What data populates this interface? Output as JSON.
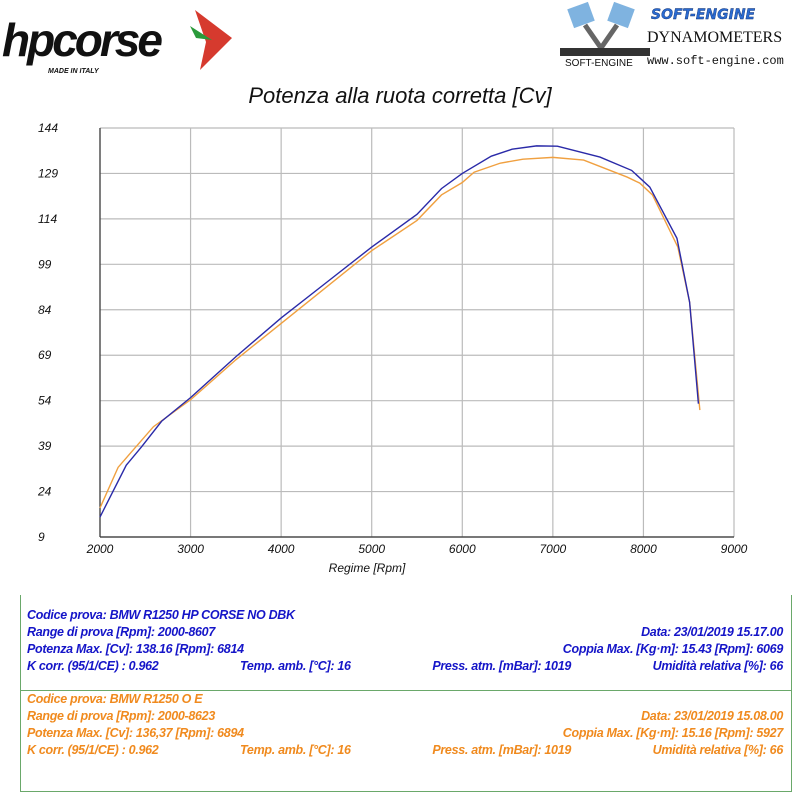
{
  "logos": {
    "hpcorse": {
      "text": "hpcorse",
      "tagline": "MADE IN ITALY"
    },
    "softengine": {
      "brand": "SOFT-ENGINE",
      "product": "DYNAMOMETERS",
      "url": "www.soft-engine.com",
      "mark": "SOFT-ENGINE"
    }
  },
  "chart_data": {
    "type": "line",
    "title": "Potenza alla ruota corretta [Cv]",
    "xlabel": "Regime [Rpm]",
    "ylabel": "",
    "xlim": [
      2000,
      9000
    ],
    "ylim": [
      9,
      144
    ],
    "xticks": [
      2000,
      3000,
      4000,
      5000,
      6000,
      7000,
      8000,
      9000
    ],
    "yticks": [
      9,
      24,
      39,
      54,
      69,
      84,
      99,
      114,
      129,
      144
    ],
    "grid": true,
    "series": [
      {
        "color": "#2a2aa8",
        "points": [
          [
            2000,
            15.6
          ],
          [
            2290,
            32.7
          ],
          [
            2460,
            38.8
          ],
          [
            2680,
            47.2
          ],
          [
            3000,
            55
          ],
          [
            3500,
            68.5
          ],
          [
            4000,
            81.3
          ],
          [
            4500,
            93
          ],
          [
            5000,
            104.7
          ],
          [
            5500,
            115.5
          ],
          [
            5770,
            124
          ],
          [
            6000,
            129
          ],
          [
            6320,
            134.7
          ],
          [
            6550,
            137
          ],
          [
            6820,
            138.1
          ],
          [
            7050,
            138
          ],
          [
            7520,
            134.4
          ],
          [
            7870,
            130
          ],
          [
            8070,
            124.5
          ],
          [
            8370,
            107.6
          ],
          [
            8510,
            86.5
          ],
          [
            8607,
            53
          ]
        ]
      },
      {
        "color": "#f0a040",
        "points": [
          [
            2000,
            18.6
          ],
          [
            2200,
            32
          ],
          [
            2590,
            45.4
          ],
          [
            3000,
            54.3
          ],
          [
            3500,
            67.5
          ],
          [
            4000,
            79.5
          ],
          [
            4500,
            91.5
          ],
          [
            5000,
            103.5
          ],
          [
            5500,
            113.5
          ],
          [
            5770,
            121.9
          ],
          [
            6000,
            126
          ],
          [
            6130,
            129.4
          ],
          [
            6420,
            132.4
          ],
          [
            6670,
            133.7
          ],
          [
            7000,
            134.3
          ],
          [
            7340,
            133.4
          ],
          [
            7820,
            127.8
          ],
          [
            7960,
            125.8
          ],
          [
            8100,
            121.9
          ],
          [
            8380,
            104.7
          ],
          [
            8510,
            86.5
          ],
          [
            8623,
            50.9
          ]
        ]
      }
    ]
  },
  "tests": [
    {
      "color": "#1515c8",
      "codice": "Codice prova: BMW R1250 HP CORSE NO DBK",
      "range": "Range di prova [Rpm]: 2000-8607",
      "data": "Data: 23/01/2019   15.17.00",
      "potenza": "Potenza Max. [Cv]: 138.16   [Rpm]: 6814",
      "coppia": "Coppia Max. [Kg·m]: 15.43   [Rpm]: 6069",
      "kcorr": "K corr. (95/1/CE) : 0.962",
      "temp": "Temp. amb. [°C]: 16",
      "press": "Press. atm. [mBar]: 1019",
      "umidita": "Umidità relativa [%]: 66"
    },
    {
      "color": "#f08a1e",
      "codice": "Codice prova: BMW R1250 O E",
      "range": "Range di prova [Rpm]: 2000-8623",
      "data": "Data: 23/01/2019   15.08.00",
      "potenza": "Potenza Max. [Cv]: 136,37   [Rpm]: 6894",
      "coppia": "Coppia Max. [Kg·m]: 15.16   [Rpm]: 5927",
      "kcorr": "K corr. (95/1/CE) : 0.962",
      "temp": "Temp. amb. [°C]: 16",
      "press": "Press. atm. [mBar]: 1019",
      "umidita": "Umidità relativa [%]: 66"
    }
  ]
}
